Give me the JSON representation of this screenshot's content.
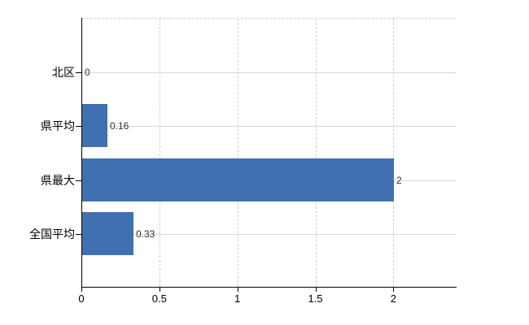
{
  "chart_data": {
    "type": "bar",
    "orientation": "horizontal",
    "title": "",
    "categories": [
      "北区",
      "県平均",
      "県最大",
      "全国平均"
    ],
    "values": [
      0,
      0.16,
      2,
      0.33
    ],
    "value_labels": [
      "0",
      "0.16",
      "2",
      "0.33"
    ],
    "x_ticks": [
      0,
      0.5,
      1,
      1.5,
      2
    ],
    "x_tick_labels": [
      "0",
      "0.5",
      "1",
      "1.5",
      "2"
    ],
    "xlim": [
      0,
      2.4
    ],
    "grid": true,
    "legend": "none",
    "colors": {
      "bar": "#4170b2",
      "grid": "#d5dbd5",
      "axis": "#000000",
      "value_label": "#303030",
      "tick_label": "#000000"
    }
  }
}
